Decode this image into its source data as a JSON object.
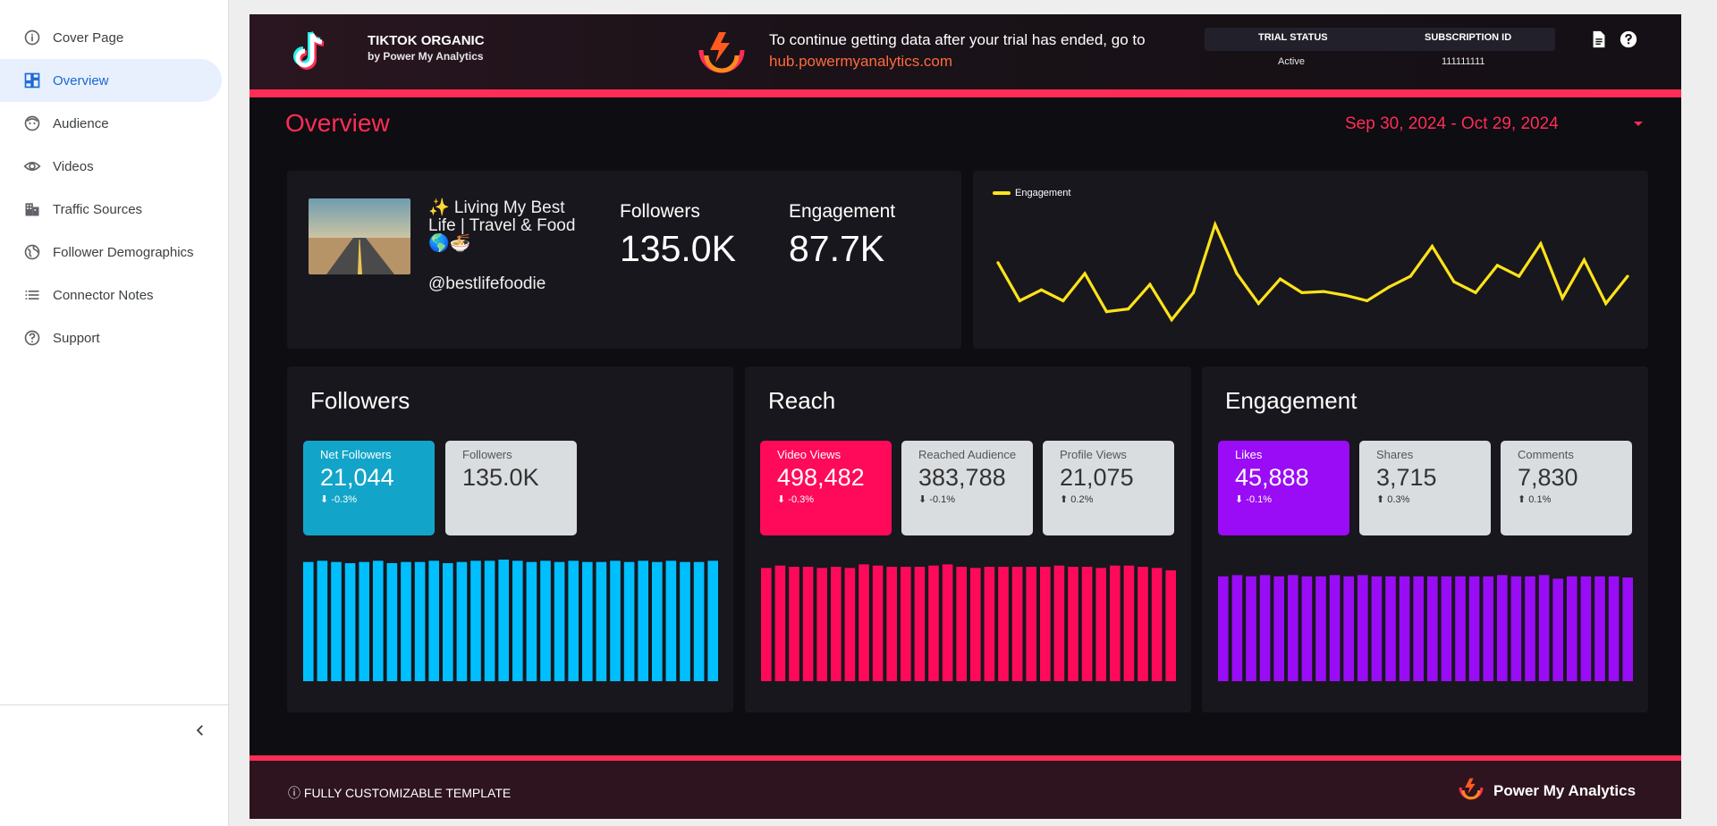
{
  "sidebar": {
    "items": [
      {
        "label": "Cover Page",
        "icon": "info-icon"
      },
      {
        "label": "Overview",
        "icon": "dashboard-icon",
        "active": true
      },
      {
        "label": "Audience",
        "icon": "face-icon"
      },
      {
        "label": "Videos",
        "icon": "eye-icon"
      },
      {
        "label": "Traffic Sources",
        "icon": "building-icon"
      },
      {
        "label": "Follower Demographics",
        "icon": "globe-icon"
      },
      {
        "label": "Connector Notes",
        "icon": "list-icon"
      },
      {
        "label": "Support",
        "icon": "help-icon"
      }
    ]
  },
  "header": {
    "title": "TIKTOK ORGANIC",
    "subtitle": "by Power My Analytics",
    "trial_message": "To continue getting data after your trial has ended, go to",
    "trial_link": "hub.powermyanalytics.com",
    "trial_status_label": "TRIAL STATUS",
    "trial_status_value": "Active",
    "subscription_label": "SUBSCRIPTION ID",
    "subscription_value": "111111111"
  },
  "page": {
    "title": "Overview",
    "date_range": "Sep 30, 2024 - Oct 29, 2024"
  },
  "profile": {
    "name": "✨ Living My Best Life | Travel & Food 🌎🍜",
    "handle": "@bestlifefoodie",
    "followers_label": "Followers",
    "followers_value": "135.0K",
    "engagement_label": "Engagement",
    "engagement_value": "87.7K"
  },
  "engagement_chart": {
    "legend": "Engagement"
  },
  "panels": [
    {
      "title": "Followers",
      "color": "#00bfff",
      "tiles": [
        {
          "label": "Net Followers",
          "value": "21,044",
          "delta": "-0.3%",
          "arrow": "⬇",
          "color": "#12a5c9"
        },
        {
          "label": "Followers",
          "value": "135.0K",
          "delta": "",
          "arrow": ""
        }
      ]
    },
    {
      "title": "Reach",
      "color": "#ff0a5a",
      "tiles": [
        {
          "label": "Video Views",
          "value": "498,482",
          "delta": "-0.3%",
          "arrow": "⬇",
          "color": "#ff0a5a"
        },
        {
          "label": "Reached Audience",
          "value": "383,788",
          "delta": "-0.1%",
          "arrow": "⬇"
        },
        {
          "label": "Profile Views",
          "value": "21,075",
          "delta": "0.2%",
          "arrow": "⬆"
        }
      ]
    },
    {
      "title": "Engagement",
      "color": "#9a0cf5",
      "tiles": [
        {
          "label": "Likes",
          "value": "45,888",
          "delta": "-0.1%",
          "arrow": "⬇",
          "color": "#9a0cf5"
        },
        {
          "label": "Shares",
          "value": "3,715",
          "delta": "0.3%",
          "arrow": "⬆"
        },
        {
          "label": "Comments",
          "value": "7,830",
          "delta": "0.1%",
          "arrow": "⬆"
        }
      ]
    }
  ],
  "footer": {
    "left": "ⓘ FULLY CUSTOMIZABLE TEMPLATE",
    "right": "Power My Analytics"
  },
  "chart_data": [
    {
      "type": "line",
      "series": [
        {
          "name": "Engagement",
          "color": "#ffe31a",
          "values": [
            2.9,
            2.2,
            2.4,
            2.2,
            2.7,
            2.0,
            2.05,
            2.5,
            1.85,
            2.35,
            3.6,
            2.7,
            2.15,
            2.6,
            2.35,
            2.37,
            2.3,
            2.2,
            2.45,
            2.65,
            3.2,
            2.55,
            2.35,
            2.85,
            2.65,
            3.25,
            2.25,
            2.95,
            2.15,
            2.65
          ]
        }
      ]
    },
    {
      "type": "bar",
      "series": [
        {
          "name": "Followers",
          "color": "#00bfff",
          "values": [
            100,
            101,
            100,
            99,
            100,
            101,
            99,
            100,
            100,
            101,
            99,
            100,
            101,
            101,
            102,
            101,
            100,
            101,
            100,
            101,
            100,
            100,
            101,
            100,
            101,
            100,
            101,
            100,
            100,
            101
          ]
        }
      ]
    },
    {
      "type": "bar",
      "series": [
        {
          "name": "Video Views",
          "color": "#ff0a5a",
          "values": [
            95,
            97,
            96,
            96,
            95,
            96,
            95,
            98,
            97,
            96,
            96,
            96,
            97,
            98,
            96,
            95,
            96,
            96,
            96,
            96,
            96,
            97,
            96,
            96,
            95,
            97,
            97,
            96,
            95,
            93
          ]
        }
      ]
    },
    {
      "type": "bar",
      "series": [
        {
          "name": "Likes",
          "color": "#9a0cf5",
          "values": [
            88,
            89,
            88,
            89,
            88,
            89,
            88,
            88,
            89,
            88,
            89,
            88,
            88,
            88,
            88,
            88,
            88,
            88,
            88,
            88,
            89,
            88,
            88,
            89,
            86,
            88,
            88,
            88,
            88,
            87
          ]
        }
      ]
    }
  ]
}
